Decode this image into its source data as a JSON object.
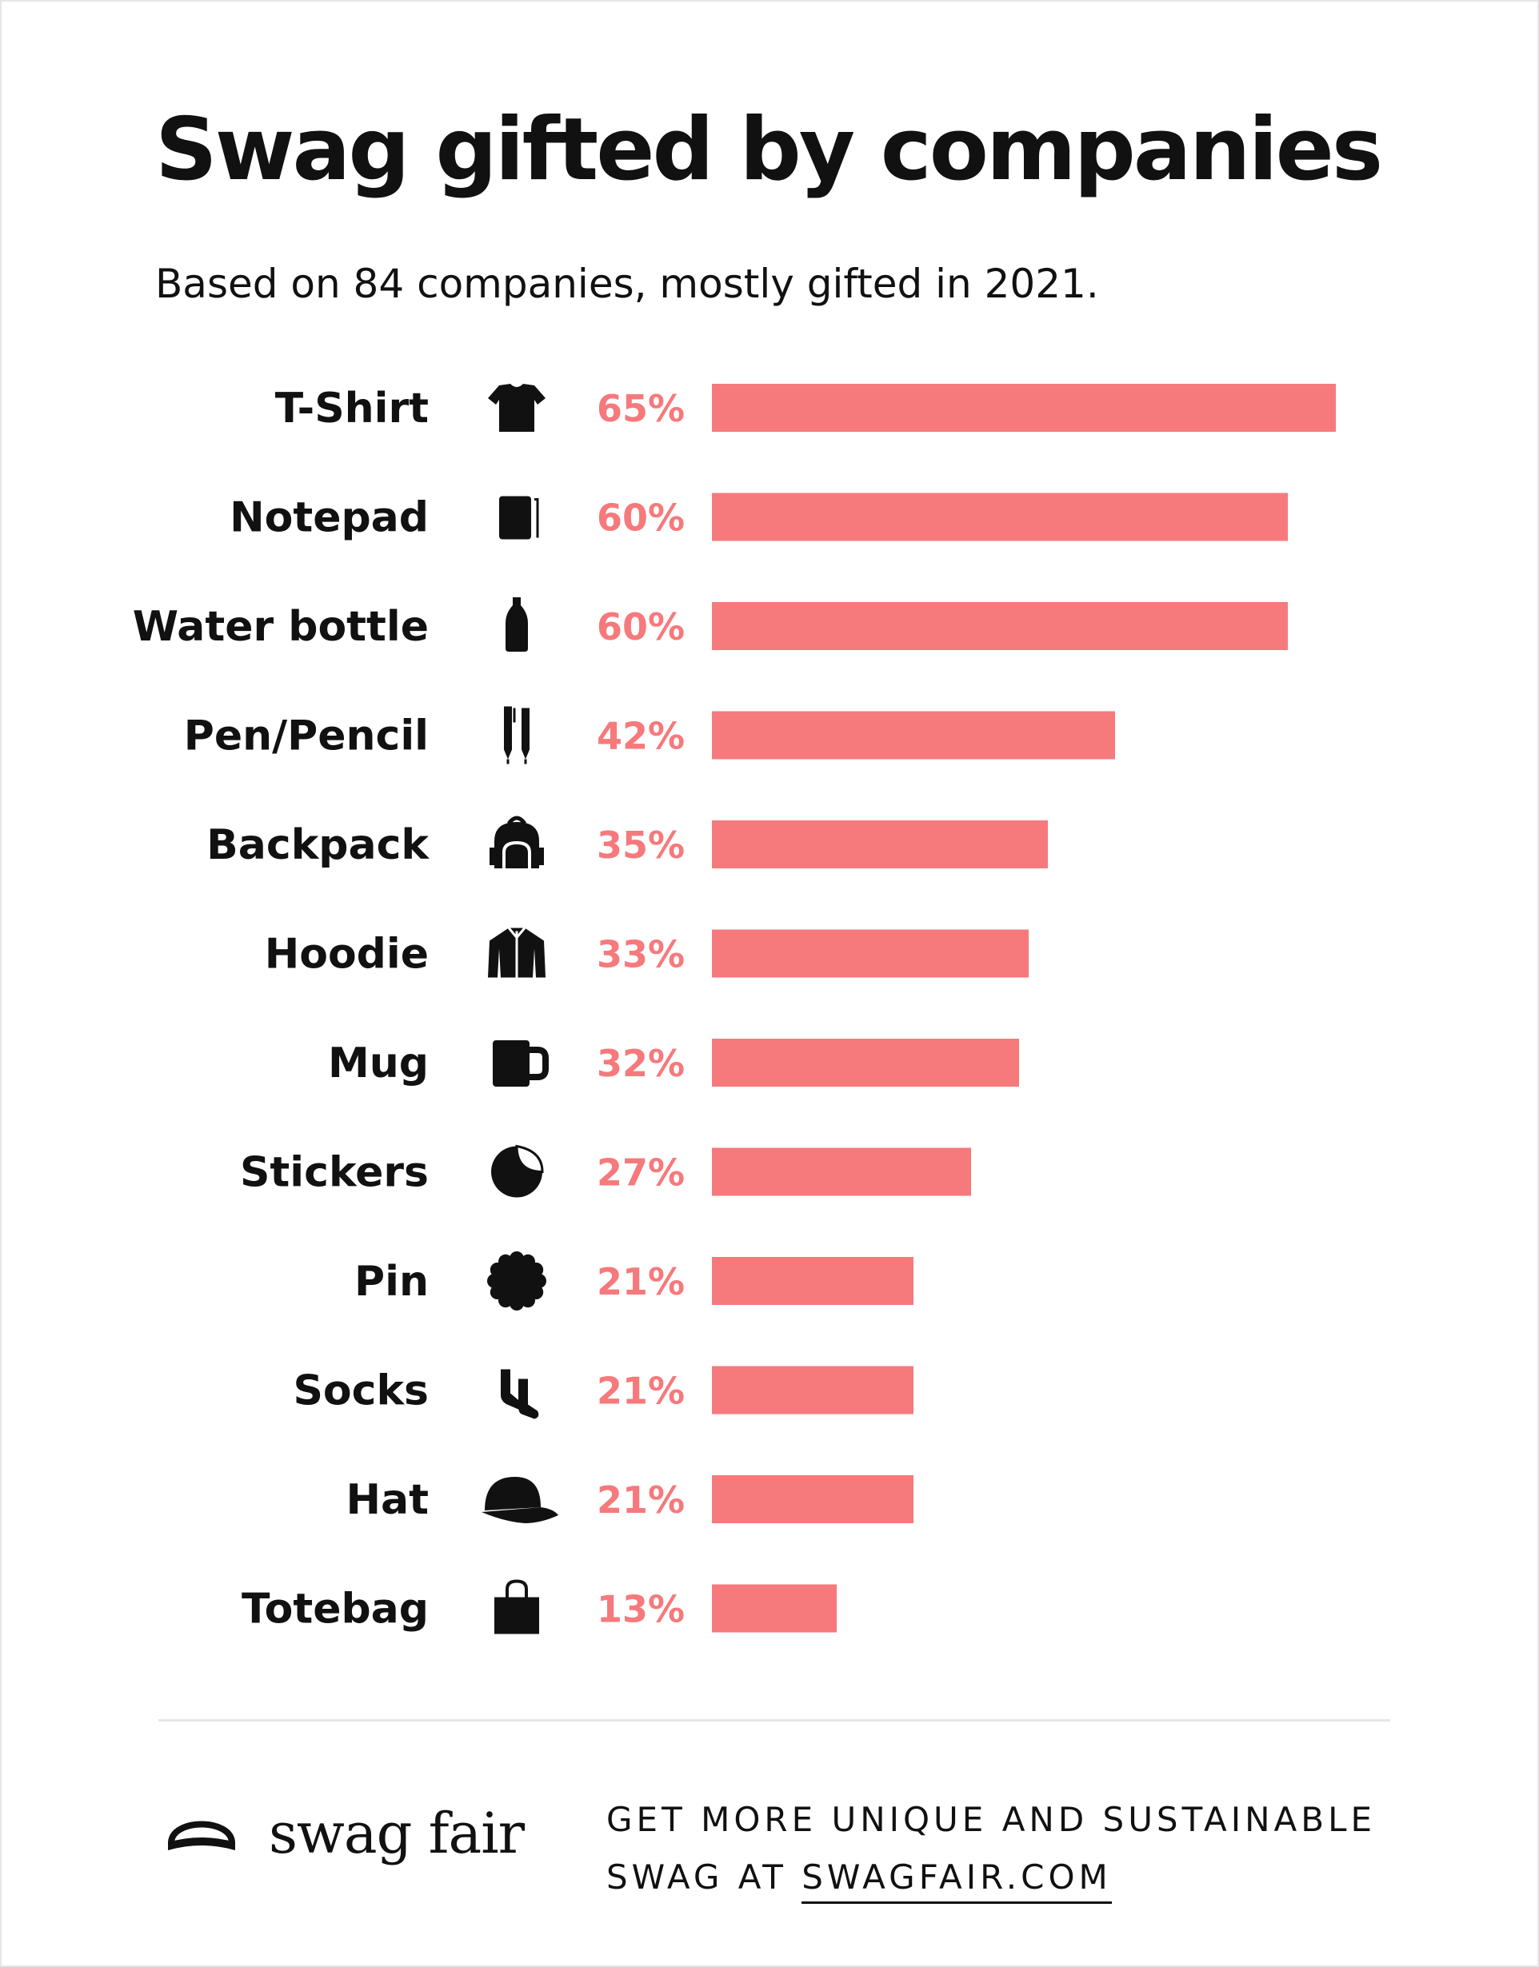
{
  "title": "Swag gifted by companies",
  "subtitle": "Based on 84 companies, mostly gifted in 2021.",
  "colors": {
    "bar": "#f6797c",
    "percent_text": "#f6797c",
    "text": "#111111",
    "divider": "#e6e6e6"
  },
  "chart_data": {
    "type": "bar",
    "orientation": "horizontal",
    "categories": [
      "T-Shirt",
      "Notepad",
      "Water bottle",
      "Pen/Pencil",
      "Backpack",
      "Hoodie",
      "Mug",
      "Stickers",
      "Pin",
      "Socks",
      "Hat",
      "Totebag"
    ],
    "values": [
      65,
      60,
      60,
      42,
      35,
      33,
      32,
      27,
      21,
      21,
      21,
      13
    ],
    "value_labels": [
      "65%",
      "60%",
      "60%",
      "42%",
      "35%",
      "33%",
      "32%",
      "27%",
      "21%",
      "21%",
      "21%",
      "13%"
    ],
    "icons": [
      "tshirt-icon",
      "notepad-icon",
      "water-bottle-icon",
      "pen-pencil-icon",
      "backpack-icon",
      "hoodie-icon",
      "mug-icon",
      "stickers-icon",
      "pin-icon",
      "socks-icon",
      "hat-icon",
      "totebag-icon"
    ],
    "xlim": [
      0,
      65
    ],
    "grid": false,
    "legend": "none"
  },
  "footer": {
    "logo_text": "swag fair",
    "cta_line1": "GET MORE UNIQUE AND SUSTAINABLE",
    "cta_line2_prefix": "SWAG AT ",
    "cta_link": "SWAGFAIR.COM"
  }
}
